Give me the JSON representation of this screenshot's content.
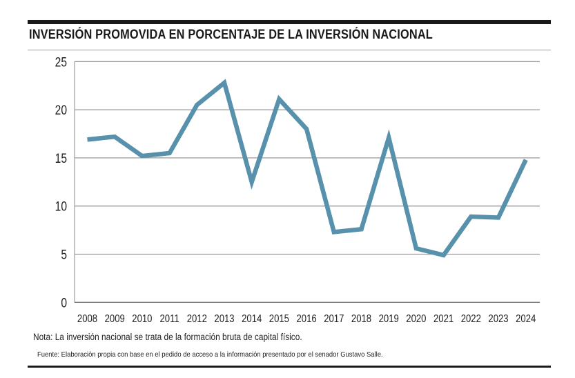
{
  "chart_data": {
    "type": "line",
    "title": "INVERSIÓN PROMOVIDA EN PORCENTAJE DE LA INVERSIÓN NACIONAL",
    "xlabel": "",
    "ylabel": "",
    "categories": [
      "2008",
      "2009",
      "2010",
      "2011",
      "2012",
      "2013",
      "2014",
      "2015",
      "2016",
      "2017",
      "2018",
      "2019",
      "2020",
      "2021",
      "2022",
      "2023",
      "2024"
    ],
    "values": [
      16.9,
      17.2,
      15.2,
      15.5,
      20.5,
      22.8,
      12.5,
      21.1,
      18.0,
      7.3,
      7.6,
      17.1,
      5.6,
      4.9,
      8.9,
      8.8,
      14.8
    ],
    "ylim": [
      0,
      25
    ],
    "yticks": [
      0,
      5,
      10,
      15,
      20,
      25
    ],
    "grid": true,
    "line_color": "#5891ab",
    "legend": "none"
  },
  "footnotes": {
    "note": "Nota: La inversión nacional se trata de la formación bruta de capital físico.",
    "source": "Fuente: Elaboración propia con base en el pedido de acceso a la información presentado por el senador Gustavo Salle."
  }
}
